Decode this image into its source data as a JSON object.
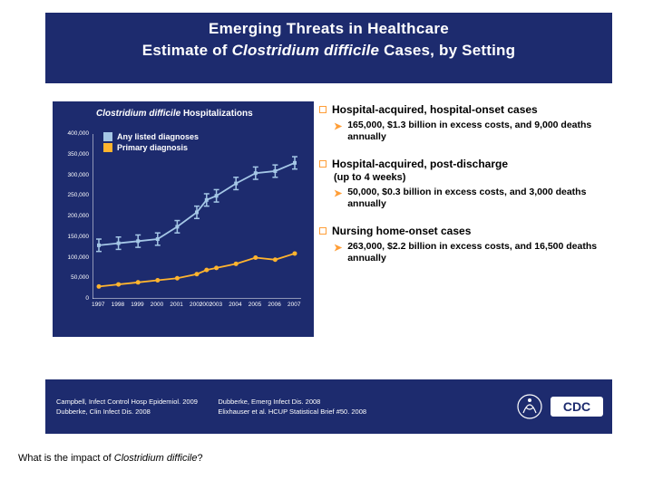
{
  "title": {
    "line1": "Emerging Threats in Healthcare",
    "line2_pre": "Estimate of ",
    "line2_em": "Clostridium difficile",
    "line2_post": " Cases, by Setting"
  },
  "chart": {
    "title_em": "Clostridium difficile",
    "title_post": " Hospitalizations",
    "bg": "#1d2b6e",
    "axis_color": "#ffffff",
    "tick_color": "#ffffff",
    "xlim": [
      1997,
      2007
    ],
    "ylim": [
      0,
      400000
    ],
    "ytick_step": 50000,
    "yticks": [
      "0",
      "50,000",
      "100,000",
      "150,000",
      "200,000",
      "250,000",
      "300,000",
      "350,000",
      "400,000"
    ],
    "xticks": [
      "1997",
      "1998",
      "1999",
      "2000",
      "2001",
      "2002",
      "2002",
      "2003",
      "2004",
      "2005",
      "2006",
      "2007"
    ],
    "series": [
      {
        "name": "Any listed diagnoses",
        "color": "#a5c7e6",
        "marker": "errorbar",
        "x": [
          1997,
          1998,
          1999,
          2000,
          2001,
          2002,
          2002.5,
          2003,
          2004,
          2005,
          2006,
          2007
        ],
        "y": [
          130000,
          135000,
          140000,
          145000,
          175000,
          210000,
          240000,
          250000,
          280000,
          305000,
          310000,
          330000
        ],
        "err": 15000
      },
      {
        "name": "Primary diagnosis",
        "color": "#ffb42e",
        "marker": "dot",
        "x": [
          1997,
          1998,
          1999,
          2000,
          2001,
          2002,
          2002.5,
          2003,
          2004,
          2005,
          2006,
          2007
        ],
        "y": [
          30000,
          35000,
          40000,
          45000,
          50000,
          60000,
          70000,
          75000,
          85000,
          100000,
          95000,
          110000
        ]
      }
    ]
  },
  "bullets": [
    {
      "head": "Hospital-acquired, hospital-onset cases",
      "sub": null,
      "detail": "165,000, $1.3 billion in excess costs, and 9,000 deaths annually"
    },
    {
      "head": "Hospital-acquired, post-discharge",
      "sub": "(up to 4 weeks)",
      "detail": "50,000, $0.3 billion in excess costs, and 3,000 deaths annually"
    },
    {
      "head": "Nursing home-onset cases",
      "sub": null,
      "detail": "263,000, $2.2 billion in excess costs, and 16,500 deaths annually"
    }
  ],
  "refs": {
    "a1": "Campbell, Infect Control Hosp Epidemiol. 2009",
    "a2": "Dubberke, Clin Infect Dis. 2008",
    "b1": "Dubberke, Emerg Infect Dis. 2008",
    "b2": "Elixhauser et al. HCUP Statistical Brief #50. 2008"
  },
  "caption": {
    "pre": "What is the impact of ",
    "em": "Clostridium difficile",
    "post": "?"
  },
  "colors": {
    "header_bg": "#1d2b6e",
    "bullet_marker": "#ff9e37"
  }
}
